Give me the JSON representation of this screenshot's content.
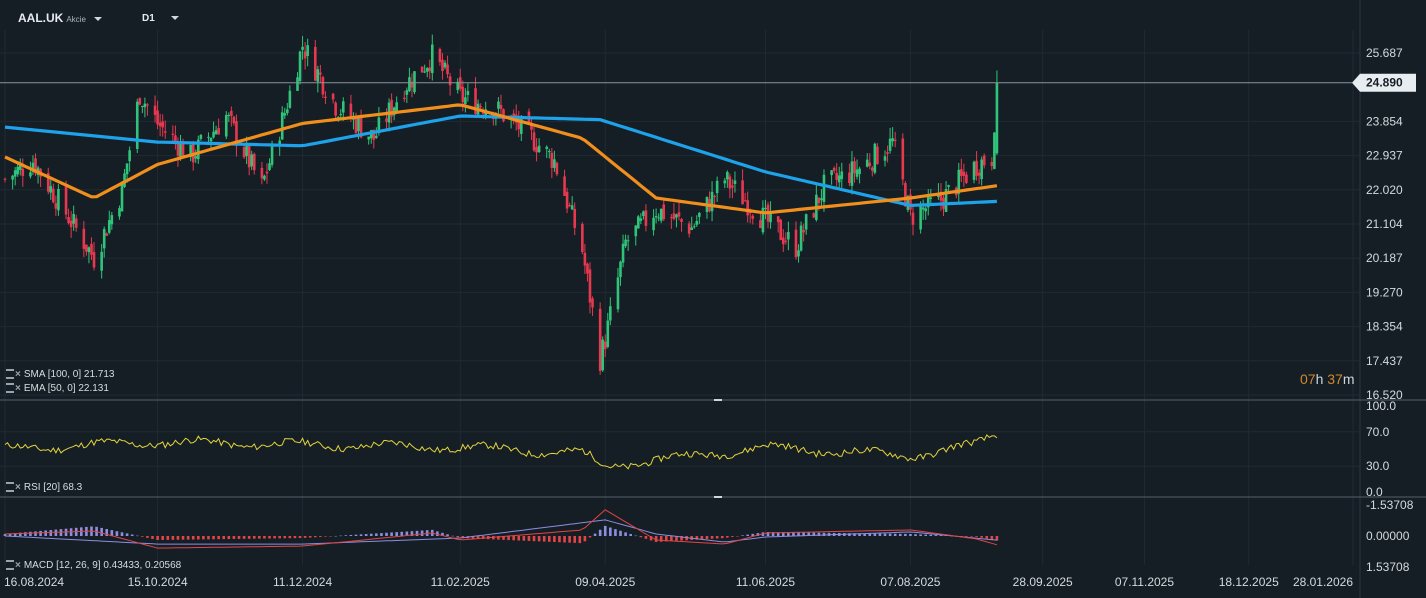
{
  "toolbar": {
    "symbol": "AAL.UK",
    "symbol_type": "Akcie",
    "timeframe": "D1",
    "symbol_dropdown_icon": "chevron-down-icon",
    "timeframe_dropdown_icon": "chevron-down-icon"
  },
  "countdown": {
    "hours": "07",
    "hours_unit": "h",
    "minutes": "37",
    "minutes_unit": "m"
  },
  "indicators": {
    "sma": {
      "label": "SMA [100, 0]",
      "value": "21.713"
    },
    "ema": {
      "label": "EMA [50, 0]",
      "value": "22.131"
    },
    "rsi": {
      "label": "RSI [20]",
      "value": "68.3"
    },
    "macd": {
      "label": "MACD [12, 26, 9]",
      "value1": "0.43433,",
      "value2": "0.20568"
    }
  },
  "colors": {
    "background": "#151e25",
    "grid": "#1f2a33",
    "bull": "#2fc47a",
    "bear": "#e8384f",
    "sma": "#1ea2ea",
    "ema": "#f08f1c",
    "rsi": "#e3d33c",
    "macd_line": "#e24545",
    "signal_line": "#8a8fe0",
    "hist_pos": "#e24545",
    "hist_neg": "#8a8fe0",
    "price_tag": "#e8edf1"
  },
  "chart_data": [
    {
      "type": "candlestick",
      "title": "AAL.UK D1",
      "x_tick_labels": [
        "16.08.2024",
        "15.10.2024",
        "11.12.2024",
        "11.02.2025",
        "09.04.2025",
        "11.06.2025",
        "07.08.2025",
        "28.09.2025",
        "07.11.2025",
        "18.12.2025",
        "28.01.2026"
      ],
      "y_tick_labels": [
        "25.687",
        "23.854",
        "22.937",
        "22.020",
        "21.104",
        "20.187",
        "19.270",
        "18.354",
        "17.437",
        "16.520"
      ],
      "ylim": [
        16.52,
        26.15
      ],
      "last_price": "24.890",
      "anchors": [
        [
          "16.08.2024",
          22.3
        ],
        [
          "27.08.2024",
          22.8
        ],
        [
          "09.09.2024",
          21.4
        ],
        [
          "20.09.2024",
          20.2
        ],
        [
          "01.10.2024",
          22.0
        ],
        [
          "08.10.2024",
          24.6
        ],
        [
          "15.10.2024",
          23.8
        ],
        [
          "28.10.2024",
          22.9
        ],
        [
          "11.11.2024",
          24.0
        ],
        [
          "25.11.2024",
          22.1
        ],
        [
          "04.12.2024",
          24.1
        ],
        [
          "11.12.2024",
          25.9
        ],
        [
          "24.12.2024",
          24.3
        ],
        [
          "08.01.2025",
          23.4
        ],
        [
          "20.01.2025",
          24.8
        ],
        [
          "31.01.2025",
          25.6
        ],
        [
          "11.02.2025",
          24.5
        ],
        [
          "25.02.2025",
          24.2
        ],
        [
          "10.03.2025",
          23.5
        ],
        [
          "20.03.2025",
          22.8
        ],
        [
          "31.03.2025",
          20.4
        ],
        [
          "07.04.2025",
          17.5
        ],
        [
          "09.04.2025",
          18.0
        ],
        [
          "17.04.2025",
          20.6
        ],
        [
          "29.04.2025",
          21.5
        ],
        [
          "13.05.2025",
          21.0
        ],
        [
          "26.05.2025",
          22.3
        ],
        [
          "11.06.2025",
          21.2
        ],
        [
          "23.06.2025",
          20.5
        ],
        [
          "04.07.2025",
          22.1
        ],
        [
          "18.07.2025",
          22.6
        ],
        [
          "31.07.2025",
          23.3
        ],
        [
          "07.08.2025",
          21.3
        ],
        [
          "20.08.2025",
          21.8
        ],
        [
          "02.09.2025",
          22.7
        ],
        [
          "08.09.2025",
          22.9
        ],
        [
          "10.09.2025",
          24.9
        ]
      ],
      "series": [
        {
          "name": "SMA [100, 0]",
          "values": [
            [
              "16.08.2024",
              23.7
            ],
            [
              "15.10.2024",
              23.3
            ],
            [
              "11.12.2024",
              23.2
            ],
            [
              "11.02.2025",
              24.0
            ],
            [
              "07.04.2025",
              23.9
            ],
            [
              "11.06.2025",
              22.5
            ],
            [
              "07.08.2025",
              21.6
            ],
            [
              "10.09.2025",
              21.71
            ]
          ]
        },
        {
          "name": "EMA [50, 0]",
          "values": [
            [
              "16.08.2024",
              22.9
            ],
            [
              "20.09.2024",
              21.8
            ],
            [
              "15.10.2024",
              22.7
            ],
            [
              "11.12.2024",
              23.8
            ],
            [
              "11.02.2025",
              24.3
            ],
            [
              "31.03.2025",
              23.4
            ],
            [
              "29.04.2025",
              21.8
            ],
            [
              "11.06.2025",
              21.4
            ],
            [
              "07.08.2025",
              21.8
            ],
            [
              "10.09.2025",
              22.13
            ]
          ]
        }
      ]
    },
    {
      "type": "line",
      "title": "RSI [20]",
      "y_tick_labels": [
        "100.0",
        "70.0",
        "30.0",
        "0.0"
      ],
      "ylim": [
        0,
        100
      ],
      "series": [
        {
          "name": "RSI [20]",
          "values": [
            [
              "16.08.2024",
              50
            ],
            [
              "15.10.2024",
              58
            ],
            [
              "11.12.2024",
              55
            ],
            [
              "11.02.2025",
              52
            ],
            [
              "31.03.2025",
              45
            ],
            [
              "09.04.2025",
              30
            ],
            [
              "11.06.2025",
              52
            ],
            [
              "07.08.2025",
              42
            ],
            [
              "02.09.2025",
              55
            ],
            [
              "10.09.2025",
              68.3
            ]
          ]
        }
      ]
    },
    {
      "type": "bar",
      "title": "MACD [12, 26, 9]",
      "y_tick_labels": [
        "1.53708",
        "0.00000",
        "-1.53708"
      ],
      "ylim": [
        -1.53708,
        1.53708
      ],
      "series": [
        {
          "name": "MACD",
          "values": [
            [
              "16.08.2024",
              -0.1
            ],
            [
              "20.09.2024",
              -0.25
            ],
            [
              "15.10.2024",
              0.6
            ],
            [
              "11.12.2024",
              0.5
            ],
            [
              "31.01.2025",
              -0.15
            ],
            [
              "11.02.2025",
              0.2
            ],
            [
              "31.03.2025",
              -0.3
            ],
            [
              "09.04.2025",
              -1.3
            ],
            [
              "29.04.2025",
              0.2
            ],
            [
              "26.05.2025",
              0.4
            ],
            [
              "11.06.2025",
              -0.15
            ],
            [
              "07.08.2025",
              -0.3
            ],
            [
              "02.09.2025",
              0.15
            ],
            [
              "10.09.2025",
              0.43433
            ]
          ]
        },
        {
          "name": "Signal",
          "values": [
            [
              "16.08.2024",
              0.0
            ],
            [
              "15.10.2024",
              0.4
            ],
            [
              "11.12.2024",
              0.4
            ],
            [
              "11.02.2025",
              0.1
            ],
            [
              "09.04.2025",
              -0.8
            ],
            [
              "29.04.2025",
              -0.1
            ],
            [
              "26.05.2025",
              0.3
            ],
            [
              "11.06.2025",
              0.05
            ],
            [
              "07.08.2025",
              -0.2
            ],
            [
              "10.09.2025",
              0.20568
            ]
          ]
        }
      ]
    }
  ]
}
